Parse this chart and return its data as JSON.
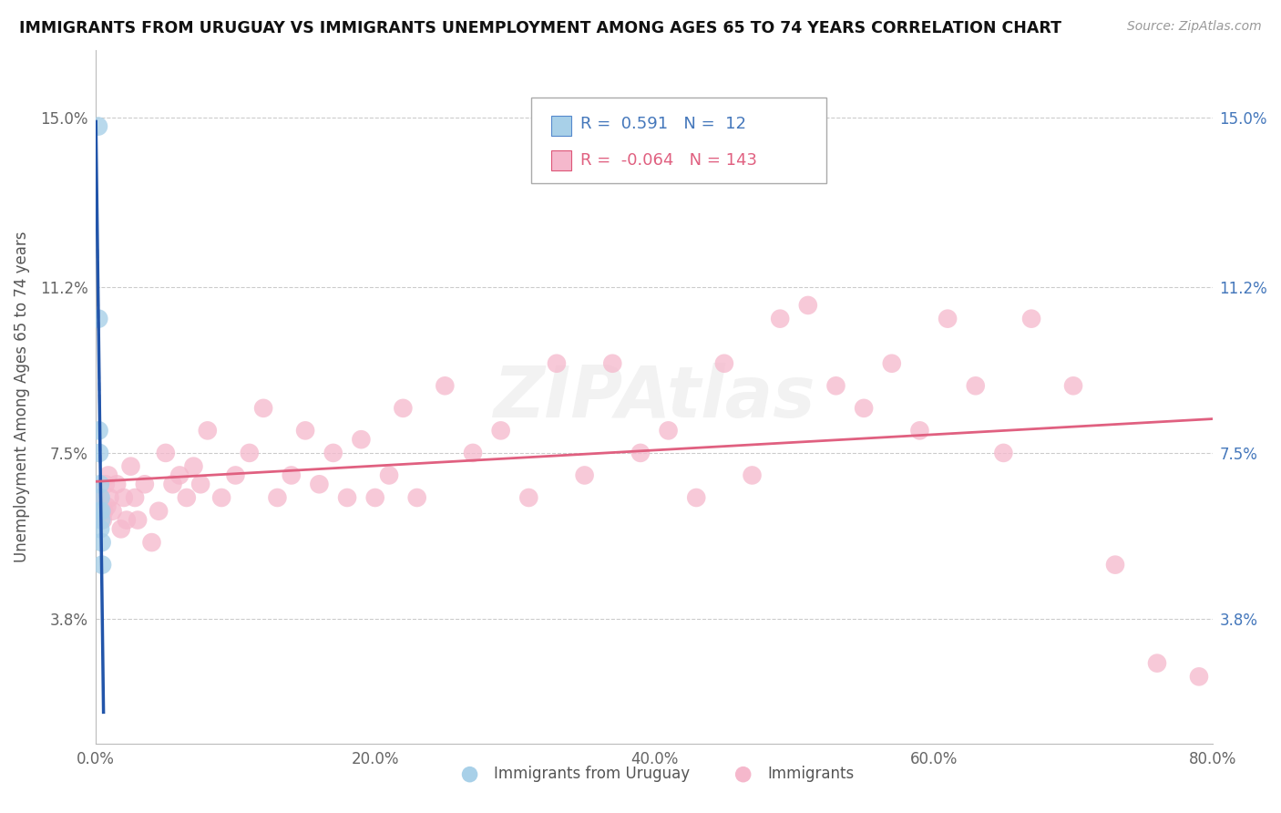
{
  "title": "IMMIGRANTS FROM URUGUAY VS IMMIGRANTS UNEMPLOYMENT AMONG AGES 65 TO 74 YEARS CORRELATION CHART",
  "source": "Source: ZipAtlas.com",
  "xlabel_vals": [
    0.0,
    20.0,
    40.0,
    60.0,
    80.0
  ],
  "ylabel_vals": [
    3.8,
    7.5,
    11.2,
    15.0
  ],
  "ylabel_labels": [
    "3.8%",
    "7.5%",
    "11.2%",
    "15.0%"
  ],
  "xmin": 0.0,
  "xmax": 80.0,
  "ymin": 1.0,
  "ymax": 16.5,
  "legend_blue_R": "0.591",
  "legend_blue_N": "12",
  "legend_pink_R": "-0.064",
  "legend_pink_N": "143",
  "watermark": "ZIPAtlas",
  "blue_color": "#A8D0E8",
  "pink_color": "#F5B8CC",
  "blue_line_color": "#2255AA",
  "pink_line_color": "#E06080",
  "uruguay_x": [
    0.18,
    0.2,
    0.22,
    0.25,
    0.28,
    0.3,
    0.32,
    0.35,
    0.38,
    0.4,
    0.42,
    0.45
  ],
  "uruguay_y": [
    14.8,
    10.5,
    8.0,
    7.5,
    6.2,
    6.8,
    5.8,
    6.5,
    6.0,
    6.2,
    5.5,
    5.0
  ],
  "immigrants_x": [
    0.3,
    0.5,
    0.6,
    0.7,
    0.8,
    0.9,
    1.0,
    1.2,
    1.5,
    1.8,
    2.0,
    2.2,
    2.5,
    2.8,
    3.0,
    3.5,
    4.0,
    4.5,
    5.0,
    5.5,
    6.0,
    6.5,
    7.0,
    7.5,
    8.0,
    9.0,
    10.0,
    11.0,
    12.0,
    13.0,
    14.0,
    15.0,
    16.0,
    17.0,
    18.0,
    19.0,
    20.0,
    21.0,
    22.0,
    23.0,
    25.0,
    27.0,
    29.0,
    31.0,
    33.0,
    35.0,
    37.0,
    39.0,
    41.0,
    43.0,
    45.0,
    47.0,
    49.0,
    51.0,
    53.0,
    55.0,
    57.0,
    59.0,
    61.0,
    63.0,
    65.0,
    67.0,
    70.0,
    73.0,
    76.0,
    79.0
  ],
  "immigrants_y": [
    6.5,
    6.0,
    6.2,
    6.8,
    6.3,
    7.0,
    6.5,
    6.2,
    6.8,
    5.8,
    6.5,
    6.0,
    7.2,
    6.5,
    6.0,
    6.8,
    5.5,
    6.2,
    7.5,
    6.8,
    7.0,
    6.5,
    7.2,
    6.8,
    8.0,
    6.5,
    7.0,
    7.5,
    8.5,
    6.5,
    7.0,
    8.0,
    6.8,
    7.5,
    6.5,
    7.8,
    6.5,
    7.0,
    8.5,
    6.5,
    9.0,
    7.5,
    8.0,
    6.5,
    9.5,
    7.0,
    9.5,
    7.5,
    8.0,
    6.5,
    9.5,
    7.0,
    10.5,
    10.8,
    9.0,
    8.5,
    9.5,
    8.0,
    10.5,
    9.0,
    7.5,
    10.5,
    9.0,
    5.0,
    2.8,
    2.5
  ]
}
